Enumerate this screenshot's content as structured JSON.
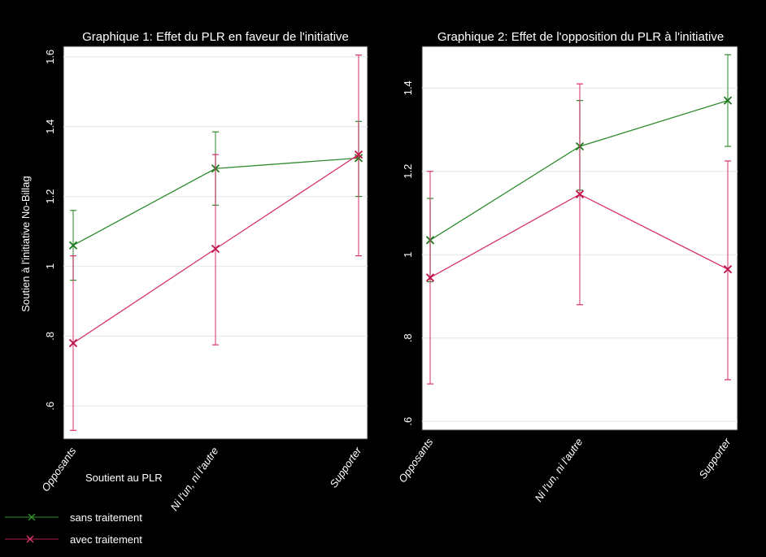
{
  "chart_data": [
    {
      "type": "line",
      "title": "Graphique 1: Effet du PLR en faveur de l'initiative",
      "xlabel": "Soutient au PLR",
      "ylabel": "Soutien à l'initiative No-Billag",
      "categories": [
        "Opposants",
        "Ni l'un, ni l'autre",
        "Supporter"
      ],
      "yticks": [
        0.6,
        0.8,
        1,
        1.2,
        1.4,
        1.6
      ],
      "ytick_labels": [
        ".6",
        ".8",
        "1",
        "1.2",
        "1.4",
        "1.6"
      ],
      "ylim": [
        0.505,
        1.63
      ],
      "grid": true,
      "series": [
        {
          "name": "sans traitement",
          "color": "#2e8b2e",
          "values": [
            1.06,
            1.28,
            1.31
          ],
          "ci_low": [
            0.96,
            1.175,
            1.2
          ],
          "ci_high": [
            1.16,
            1.385,
            1.415
          ]
        },
        {
          "name": "avec traitement",
          "color": "#d6336c",
          "values": [
            0.78,
            1.05,
            1.32
          ],
          "ci_low": [
            0.53,
            0.775,
            1.03
          ],
          "ci_high": [
            1.03,
            1.32,
            1.605
          ]
        }
      ]
    },
    {
      "type": "line",
      "title": "Graphique 2: Effet de l'opposition du PLR à l'initiative",
      "xlabel": "",
      "ylabel": "",
      "categories": [
        "Opposants",
        "Ni l'un, ni l'autre",
        "Supporter"
      ],
      "yticks": [
        0.6,
        0.8,
        1,
        1.2,
        1.4
      ],
      "ytick_labels": [
        ".6",
        ".8",
        "1",
        "1.2",
        "1.4"
      ],
      "ylim": [
        0.579,
        1.5
      ],
      "grid": true,
      "series": [
        {
          "name": "sans traitement",
          "color": "#2e8b2e",
          "values": [
            1.035,
            1.26,
            1.37
          ],
          "ci_low": [
            0.935,
            1.155,
            1.26
          ],
          "ci_high": [
            1.135,
            1.37,
            1.48
          ]
        },
        {
          "name": "avec traitement",
          "color": "#d6336c",
          "values": [
            0.945,
            1.145,
            0.965
          ],
          "ci_low": [
            0.69,
            0.88,
            0.7
          ],
          "ci_high": [
            1.2,
            1.41,
            1.225
          ]
        }
      ]
    }
  ],
  "legend": {
    "placement": "bottom-left",
    "items": [
      {
        "label": "sans traitement",
        "color": "#2e8b2e"
      },
      {
        "label": "avec traitement",
        "color": "#b0174a"
      }
    ]
  }
}
